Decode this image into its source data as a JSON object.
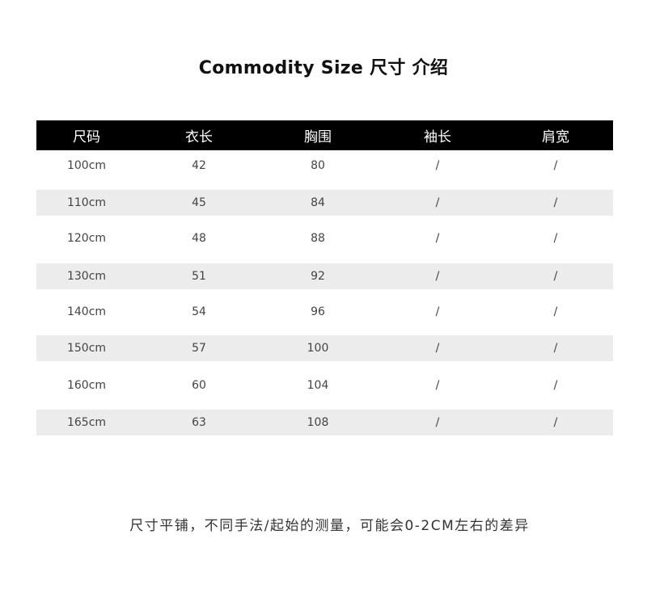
{
  "title": "Commodity Size  尺寸 介绍",
  "headers": [
    "尺码",
    "衣长",
    "胸围",
    "袖长",
    "肩宽"
  ],
  "rows": [
    [
      "100cm",
      "42",
      "80",
      "/",
      "/"
    ],
    [
      "110cm",
      "45",
      "84",
      "/",
      "/"
    ],
    [
      "120cm",
      "48",
      "88",
      "/",
      "/"
    ],
    [
      "130cm",
      "51",
      "92",
      "/",
      "/"
    ],
    [
      "140cm",
      "54",
      "96",
      "/",
      "/"
    ],
    [
      "150cm",
      "57",
      "100",
      "/",
      "/"
    ],
    [
      "160cm",
      "60",
      "104",
      "/",
      "/"
    ],
    [
      "165cm",
      "63",
      "108",
      "/",
      "/"
    ]
  ],
  "footer": "尺寸平铺，不同手法/起始的测量，可能会0-2CM左右的差异",
  "colors": {
    "header_bg": "#000000",
    "stripe": "#ececec"
  }
}
